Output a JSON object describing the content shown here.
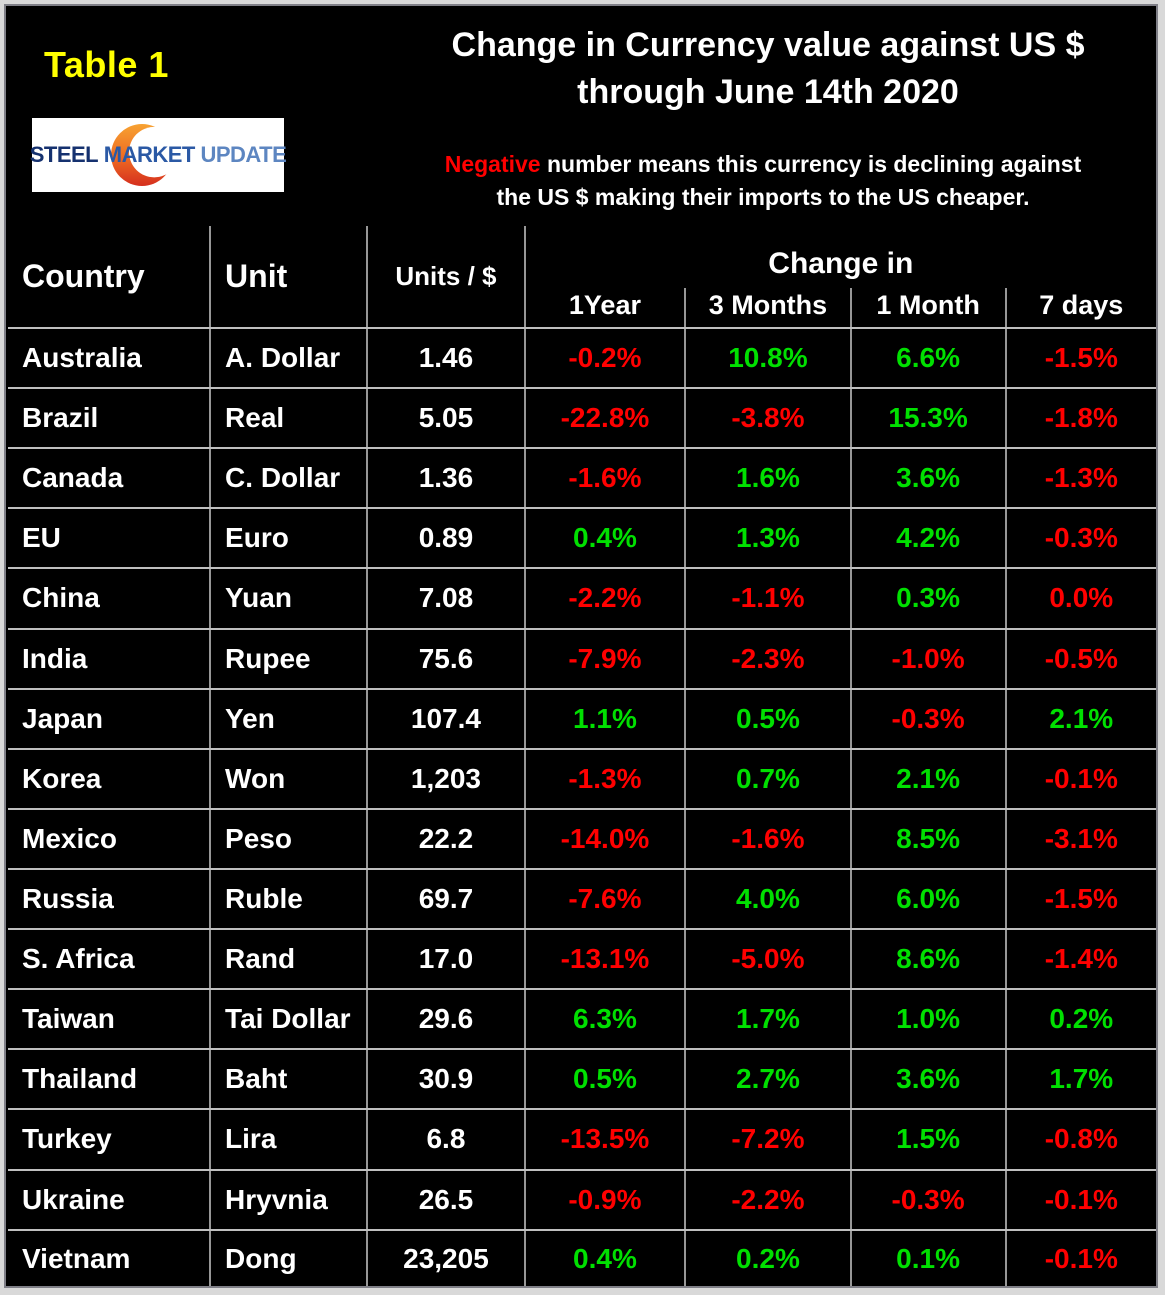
{
  "header": {
    "table_label": "Table 1",
    "title_line1": "Change in Currency value against US $",
    "title_line2": "through June 14th 2020",
    "note_highlight": "Negative",
    "note_rest_line1": " number means this currency is declining against",
    "note_line2": "the US $ making their imports to the US cheaper.",
    "logo": {
      "word1": "STEEL",
      "word2": " MARKET",
      "word3": " UPDATE",
      "icon": "crescent-icon"
    }
  },
  "colors": {
    "positive": "#00e000",
    "negative": "#ff0000",
    "table_label_yellow": "#ffff00",
    "note_highlight_red": "#ff0000"
  },
  "chart_data": {
    "type": "table",
    "title": "Change in Currency value against US $ through June 14th 2020",
    "change_group_label": "Change in",
    "column_groups": {
      "base": [
        "Country",
        "Unit",
        "Units / $"
      ],
      "change_in": [
        "1Year",
        "3 Months",
        "1 Month",
        "7 days"
      ]
    },
    "value_format": "percent, one decimal; red = negative or zero, green = positive",
    "rows": [
      [
        "Australia",
        "A. Dollar",
        "1.46",
        -0.2,
        10.8,
        6.6,
        -1.5
      ],
      [
        "Brazil",
        "Real",
        "5.05",
        -22.8,
        -3.8,
        15.3,
        -1.8
      ],
      [
        "Canada",
        "C. Dollar",
        "1.36",
        -1.6,
        1.6,
        3.6,
        -1.3
      ],
      [
        "EU",
        "Euro",
        "0.89",
        0.4,
        1.3,
        4.2,
        -0.3
      ],
      [
        "China",
        "Yuan",
        "7.08",
        -2.2,
        -1.1,
        0.3,
        0.0
      ],
      [
        "India",
        "Rupee",
        "75.6",
        -7.9,
        -2.3,
        -1.0,
        -0.5
      ],
      [
        "Japan",
        "Yen",
        "107.4",
        1.1,
        0.5,
        -0.3,
        2.1
      ],
      [
        "Korea",
        "Won",
        "1,203",
        -1.3,
        0.7,
        2.1,
        -0.1
      ],
      [
        "Mexico",
        "Peso",
        "22.2",
        -14.0,
        -1.6,
        8.5,
        -3.1
      ],
      [
        "Russia",
        "Ruble",
        "69.7",
        -7.6,
        4.0,
        6.0,
        -1.5
      ],
      [
        "S. Africa",
        "Rand",
        "17.0",
        -13.1,
        -5.0,
        8.6,
        -1.4
      ],
      [
        "Taiwan",
        "Tai Dollar",
        "29.6",
        6.3,
        1.7,
        1.0,
        0.2
      ],
      [
        "Thailand",
        "Baht",
        "30.9",
        0.5,
        2.7,
        3.6,
        1.7
      ],
      [
        "Turkey",
        "Lira",
        "6.8",
        -13.5,
        -7.2,
        1.5,
        -0.8
      ],
      [
        "Ukraine",
        "Hryvnia",
        "26.5",
        -0.9,
        -2.2,
        -0.3,
        -0.1
      ],
      [
        "Vietnam",
        "Dong",
        "23,205",
        0.4,
        0.2,
        0.1,
        -0.1
      ]
    ]
  }
}
